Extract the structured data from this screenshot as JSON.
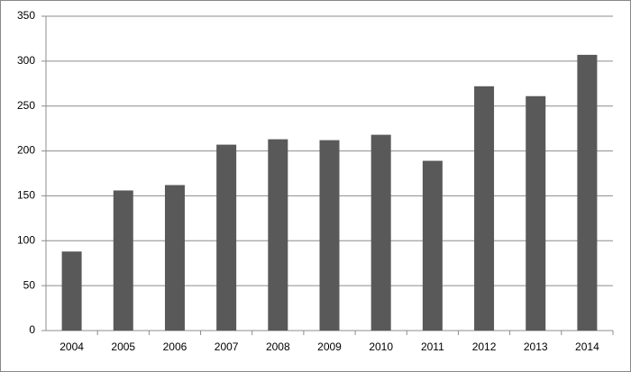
{
  "chart_data": {
    "type": "bar",
    "categories": [
      "2004",
      "2005",
      "2006",
      "2007",
      "2008",
      "2009",
      "2010",
      "2011",
      "2012",
      "2013",
      "2014"
    ],
    "values": [
      88,
      156,
      162,
      207,
      213,
      212,
      218,
      189,
      272,
      261,
      307
    ],
    "color": "#595959",
    "ylim": [
      0,
      350
    ],
    "yticks": [
      0,
      50,
      100,
      150,
      200,
      250,
      300,
      350
    ],
    "grid": true
  }
}
